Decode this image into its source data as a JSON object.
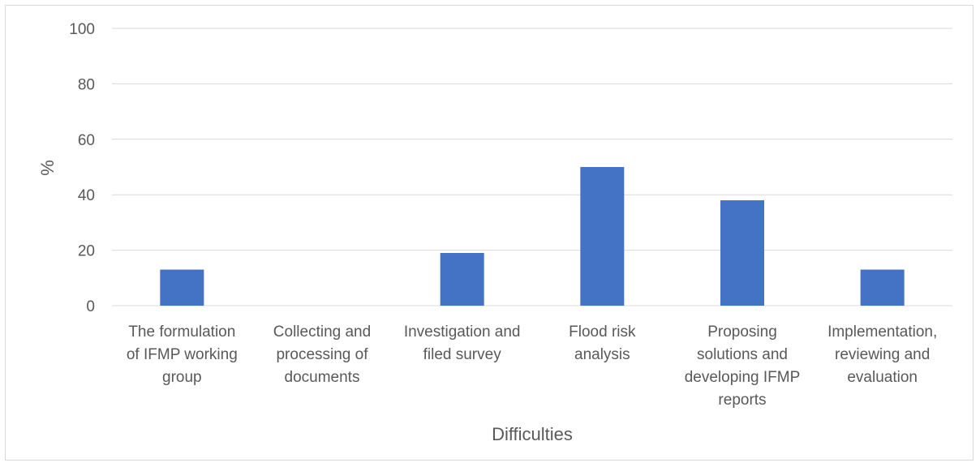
{
  "chart_data": {
    "type": "bar",
    "categories": [
      [
        "The formulation",
        "of IFMP working",
        "group"
      ],
      [
        "Collecting and",
        "processing of",
        "documents"
      ],
      [
        "Investigation and",
        "filed survey"
      ],
      [
        "Flood risk",
        "analysis"
      ],
      [
        "Proposing",
        "solutions and",
        "developing IFMP",
        "reports"
      ],
      [
        "Implementation,",
        "reviewing and",
        "evaluation"
      ]
    ],
    "values": [
      13,
      0,
      19,
      50,
      38,
      13
    ],
    "title": "",
    "xlabel": "Difficulties",
    "ylabel": "%",
    "ylim": [
      0,
      100
    ],
    "yticks": [
      0,
      20,
      40,
      60,
      80,
      100
    ],
    "grid": true,
    "legend": "none",
    "colors": {
      "bar": "#4472c4",
      "grid": "#d9d9d9",
      "axis": "#d9d9d9",
      "text": "#595959"
    }
  }
}
